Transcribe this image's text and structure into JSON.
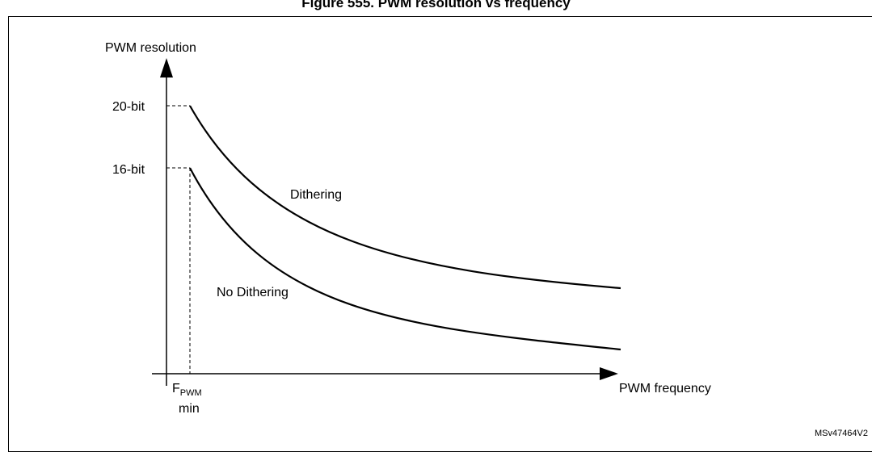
{
  "figure": {
    "title": "Figure 555. PWM resolution vs frequency"
  },
  "axes": {
    "y_label": "PWM resolution",
    "x_label": "PWM frequency"
  },
  "levels": {
    "upper": "20-bit",
    "lower": "16-bit"
  },
  "fmin": {
    "f": "F",
    "sub": "PWM",
    "min": "min"
  },
  "curves": {
    "dithering": "Dithering",
    "no_dithering": "No Dithering"
  },
  "watermark": "MSv47464V2"
}
